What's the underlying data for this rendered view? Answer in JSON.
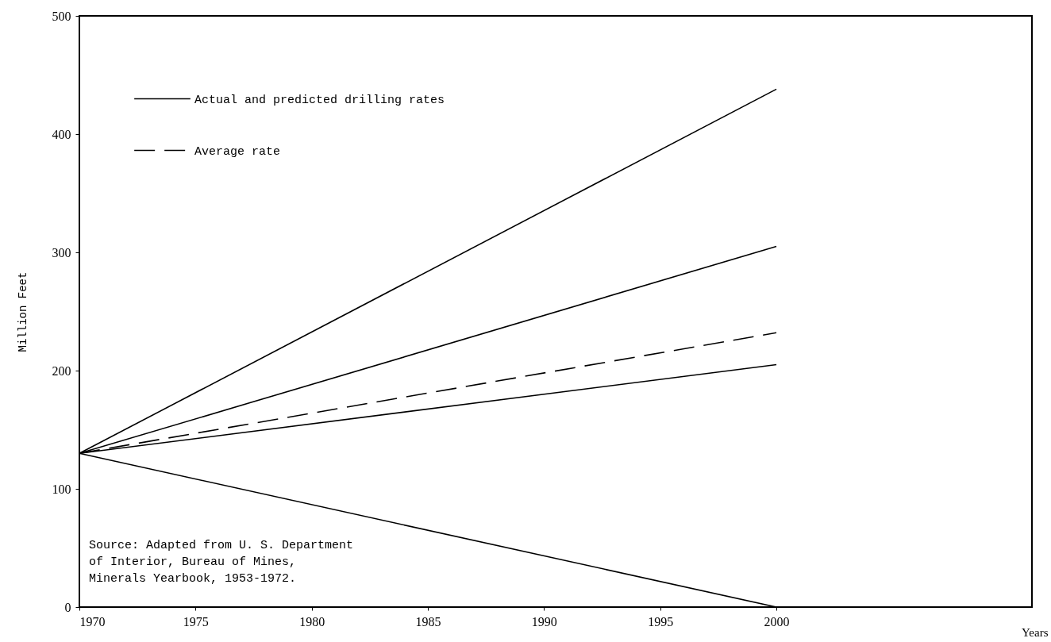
{
  "chart_data": {
    "type": "line",
    "xlabel": "Years",
    "ylabel": "Million Feet",
    "xlim": [
      1970,
      2011
    ],
    "xticks": [
      1970,
      1975,
      1980,
      1985,
      1990,
      1995,
      2000
    ],
    "ylim": [
      0,
      500
    ],
    "yticks": [
      0,
      100,
      200,
      300,
      400,
      500
    ],
    "grid": false,
    "legend": "top left",
    "x": [
      1970,
      2000
    ],
    "series": [
      {
        "name": "Actual and predicted drilling rates",
        "color": "#000000",
        "line_style": "solid",
        "values": [
          130,
          438
        ]
      },
      {
        "color": "#000000",
        "line_style": "solid",
        "values": [
          130,
          305
        ]
      },
      {
        "name": "Average rate",
        "color": "#000000",
        "line_style": "dashed",
        "values": [
          130,
          232
        ]
      },
      {
        "color": "#000000",
        "line_style": "solid",
        "values": [
          130,
          205
        ]
      },
      {
        "color": "#000000",
        "line_style": "solid",
        "values": [
          130,
          0
        ]
      }
    ],
    "annotations": [
      "Source: Adapted from U. S. Department of Interior, Bureau of Mines, Minerals Yearbook, 1953-1972."
    ]
  }
}
